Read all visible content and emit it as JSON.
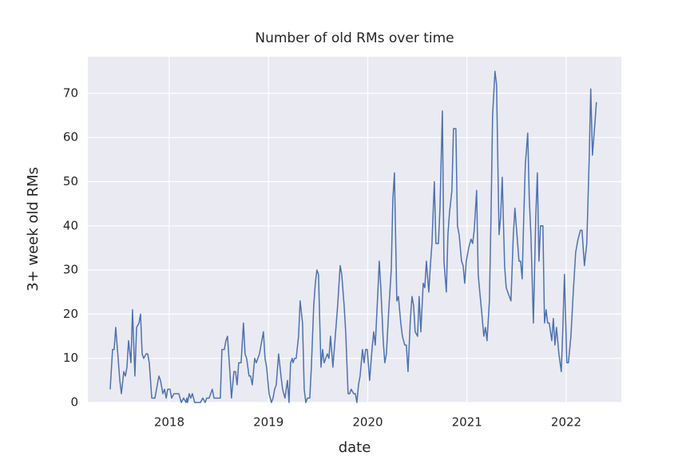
{
  "chart_data": {
    "type": "line",
    "title": "Number of old RMs over time",
    "x_label": "date",
    "y_label": "3+ week old RMs",
    "color": "#4c72b0",
    "grid": true,
    "xlim": [
      2017.18,
      2022.555
    ],
    "ylim": [
      0,
      78.3
    ],
    "xticks": [
      2018,
      2019,
      2020,
      2021,
      2022
    ],
    "yticks": [
      0,
      10,
      20,
      30,
      40,
      50,
      60,
      70
    ],
    "x": [
      2017.405,
      2017.429,
      2017.445,
      2017.461,
      2017.485,
      2017.502,
      2017.518,
      2017.542,
      2017.558,
      2017.574,
      2017.59,
      2017.614,
      2017.63,
      2017.654,
      2017.671,
      2017.695,
      2017.711,
      2017.727,
      2017.743,
      2017.767,
      2017.783,
      2017.799,
      2017.824,
      2017.856,
      2017.888,
      2017.896,
      2017.912,
      2017.936,
      2017.953,
      2017.969,
      2017.985,
      2018.008,
      2018.024,
      2018.048,
      2018.072,
      2018.097,
      2018.121,
      2018.145,
      2018.169,
      2018.177,
      2018.185,
      2018.201,
      2018.217,
      2018.233,
      2018.257,
      2018.29,
      2018.314,
      2018.338,
      2018.362,
      2018.378,
      2018.402,
      2018.434,
      2018.451,
      2018.483,
      2018.515,
      2018.531,
      2018.555,
      2018.571,
      2018.587,
      2018.611,
      2018.627,
      2018.652,
      2018.668,
      2018.684,
      2018.7,
      2018.724,
      2018.748,
      2018.764,
      2018.78,
      2018.804,
      2018.82,
      2018.837,
      2018.861,
      2018.877,
      2018.909,
      2018.925,
      2018.949,
      2018.965,
      2018.981,
      2019.006,
      2019.03,
      2019.046,
      2019.062,
      2019.078,
      2019.102,
      2019.126,
      2019.142,
      2019.166,
      2019.191,
      2019.207,
      2019.223,
      2019.239,
      2019.247,
      2019.263,
      2019.279,
      2019.303,
      2019.319,
      2019.343,
      2019.36,
      2019.376,
      2019.392,
      2019.416,
      2019.432,
      2019.456,
      2019.472,
      2019.488,
      2019.504,
      2019.529,
      2019.545,
      2019.561,
      2019.577,
      2019.593,
      2019.609,
      2019.625,
      2019.649,
      2019.673,
      2019.697,
      2019.722,
      2019.738,
      2019.762,
      2019.778,
      2019.802,
      2019.818,
      2019.834,
      2019.858,
      2019.875,
      2019.891,
      2019.907,
      2019.923,
      2019.947,
      2019.963,
      2019.979,
      2019.995,
      2020.019,
      2020.043,
      2020.06,
      2020.076,
      2020.1,
      2020.116,
      2020.132,
      2020.156,
      2020.172,
      2020.188,
      2020.212,
      2020.237,
      2020.253,
      2020.269,
      2020.293,
      2020.309,
      2020.333,
      2020.349,
      2020.373,
      2020.389,
      2020.406,
      2020.43,
      2020.446,
      2020.462,
      2020.478,
      2020.502,
      2020.518,
      2020.535,
      2020.559,
      2020.575,
      2020.591,
      2020.615,
      2020.631,
      2020.647,
      2020.671,
      2020.687,
      2020.712,
      2020.728,
      2020.752,
      2020.768,
      2020.792,
      2020.808,
      2020.824,
      2020.848,
      2020.864,
      2020.888,
      2020.904,
      2020.921,
      2020.945,
      2020.961,
      2020.977,
      2020.993,
      2021.017,
      2021.041,
      2021.057,
      2021.073,
      2021.097,
      2021.113,
      2021.129,
      2021.146,
      2021.17,
      2021.186,
      2021.202,
      2021.226,
      2021.242,
      2021.258,
      2021.282,
      2021.298,
      2021.323,
      2021.339,
      2021.355,
      2021.379,
      2021.395,
      2021.411,
      2021.427,
      2021.443,
      2021.467,
      2021.483,
      2021.5,
      2021.524,
      2021.54,
      2021.556,
      2021.572,
      2021.588,
      2021.612,
      2021.628,
      2021.644,
      2021.669,
      2021.693,
      2021.709,
      2021.725,
      2021.741,
      2021.765,
      2021.781,
      2021.797,
      2021.813,
      2021.829,
      2021.854,
      2021.87,
      2021.886,
      2021.902,
      2021.926,
      2021.95,
      2021.966,
      2021.982,
      2022.006,
      2022.022,
      2022.047,
      2022.071,
      2022.095,
      2022.119,
      2022.143,
      2022.159,
      2022.183,
      2022.207,
      2022.231,
      2022.247,
      2022.264,
      2022.288,
      2022.304
    ],
    "values": [
      3,
      12,
      12,
      17,
      10,
      5,
      2,
      7,
      6,
      8,
      14,
      9,
      21,
      6,
      17,
      18,
      20,
      11,
      10,
      11,
      11,
      9,
      1,
      1,
      5,
      6,
      5,
      2,
      3,
      1,
      3,
      3,
      1,
      2,
      2,
      2,
      0,
      1,
      0,
      1,
      0,
      2,
      1,
      2,
      0,
      0,
      0,
      1,
      0,
      1,
      1,
      3,
      1,
      1,
      1,
      12,
      12,
      14,
      15,
      7,
      1,
      7,
      7,
      4,
      9,
      9,
      18,
      11,
      10,
      6,
      6,
      4,
      10,
      9,
      11,
      13,
      16,
      10,
      8,
      2,
      0,
      1,
      3,
      4,
      11,
      6,
      3,
      1,
      5,
      0,
      9,
      10,
      9,
      10,
      10,
      15,
      23,
      18,
      3,
      0,
      1,
      1,
      8,
      22,
      27,
      30,
      29,
      8,
      12,
      9,
      10,
      11,
      10,
      15,
      8,
      15,
      22,
      31,
      29,
      22,
      16,
      2,
      2,
      3,
      2,
      2,
      0,
      4,
      6,
      12,
      9,
      12,
      12,
      5,
      12,
      16,
      13,
      24,
      32,
      26,
      14,
      9,
      11,
      21,
      30,
      46,
      52,
      23,
      24,
      18,
      15,
      13,
      13,
      7,
      19,
      24,
      22,
      16,
      15,
      24,
      16,
      27,
      26,
      32,
      25,
      31,
      36,
      50,
      36,
      36,
      44,
      66,
      32,
      25,
      38,
      43,
      48,
      62,
      62,
      40,
      38,
      32,
      31,
      27,
      32,
      35,
      37,
      36,
      39,
      48,
      29,
      25,
      21,
      15,
      17,
      14,
      23,
      42,
      65,
      75,
      72,
      38,
      42,
      51,
      31,
      26,
      25,
      24,
      23,
      38,
      44,
      39,
      32,
      32,
      28,
      42,
      54,
      61,
      46,
      38,
      18,
      42,
      52,
      32,
      40,
      40,
      18,
      21,
      18,
      18,
      14,
      19,
      13,
      17,
      11,
      7,
      17,
      29,
      9,
      9,
      15,
      25,
      34,
      37,
      39,
      39,
      31,
      36,
      55,
      71,
      56,
      63,
      68
    ]
  }
}
